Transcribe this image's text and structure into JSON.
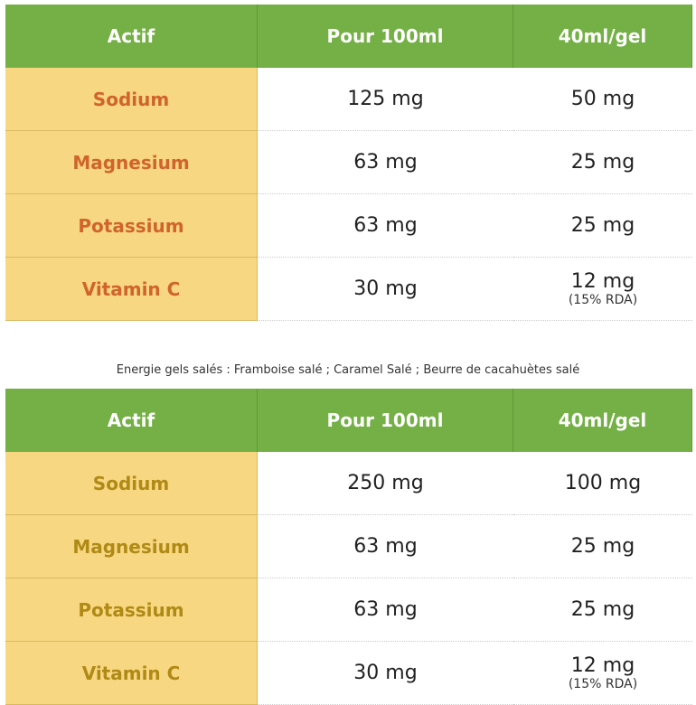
{
  "tables": [
    {
      "header": [
        "Actif",
        "Pour 100ml",
        "40ml/gel"
      ],
      "rows": [
        [
          "Sodium",
          "125 mg",
          "50 mg"
        ],
        [
          "Magnesium",
          "63 mg",
          "25 mg"
        ],
        [
          "Potassium",
          "63 mg",
          "25 mg"
        ],
        [
          "Vitamin C",
          "30 mg",
          "12 mg",
          "(15% RDA)"
        ]
      ]
    },
    {
      "header": [
        "Actif",
        "Pour 100ml",
        "40ml/gel"
      ],
      "rows": [
        [
          "Sodium",
          "250 mg",
          "100 mg"
        ],
        [
          "Magnesium",
          "63 mg",
          "25 mg"
        ],
        [
          "Potassium",
          "63 mg",
          "25 mg"
        ],
        [
          "Vitamin C",
          "30 mg",
          "12 mg",
          "(15% RDA)"
        ]
      ]
    }
  ],
  "caption": "Energie gels salés : Framboise salé ; Caramel Salé ; Beurre de cacahuètes salé"
}
